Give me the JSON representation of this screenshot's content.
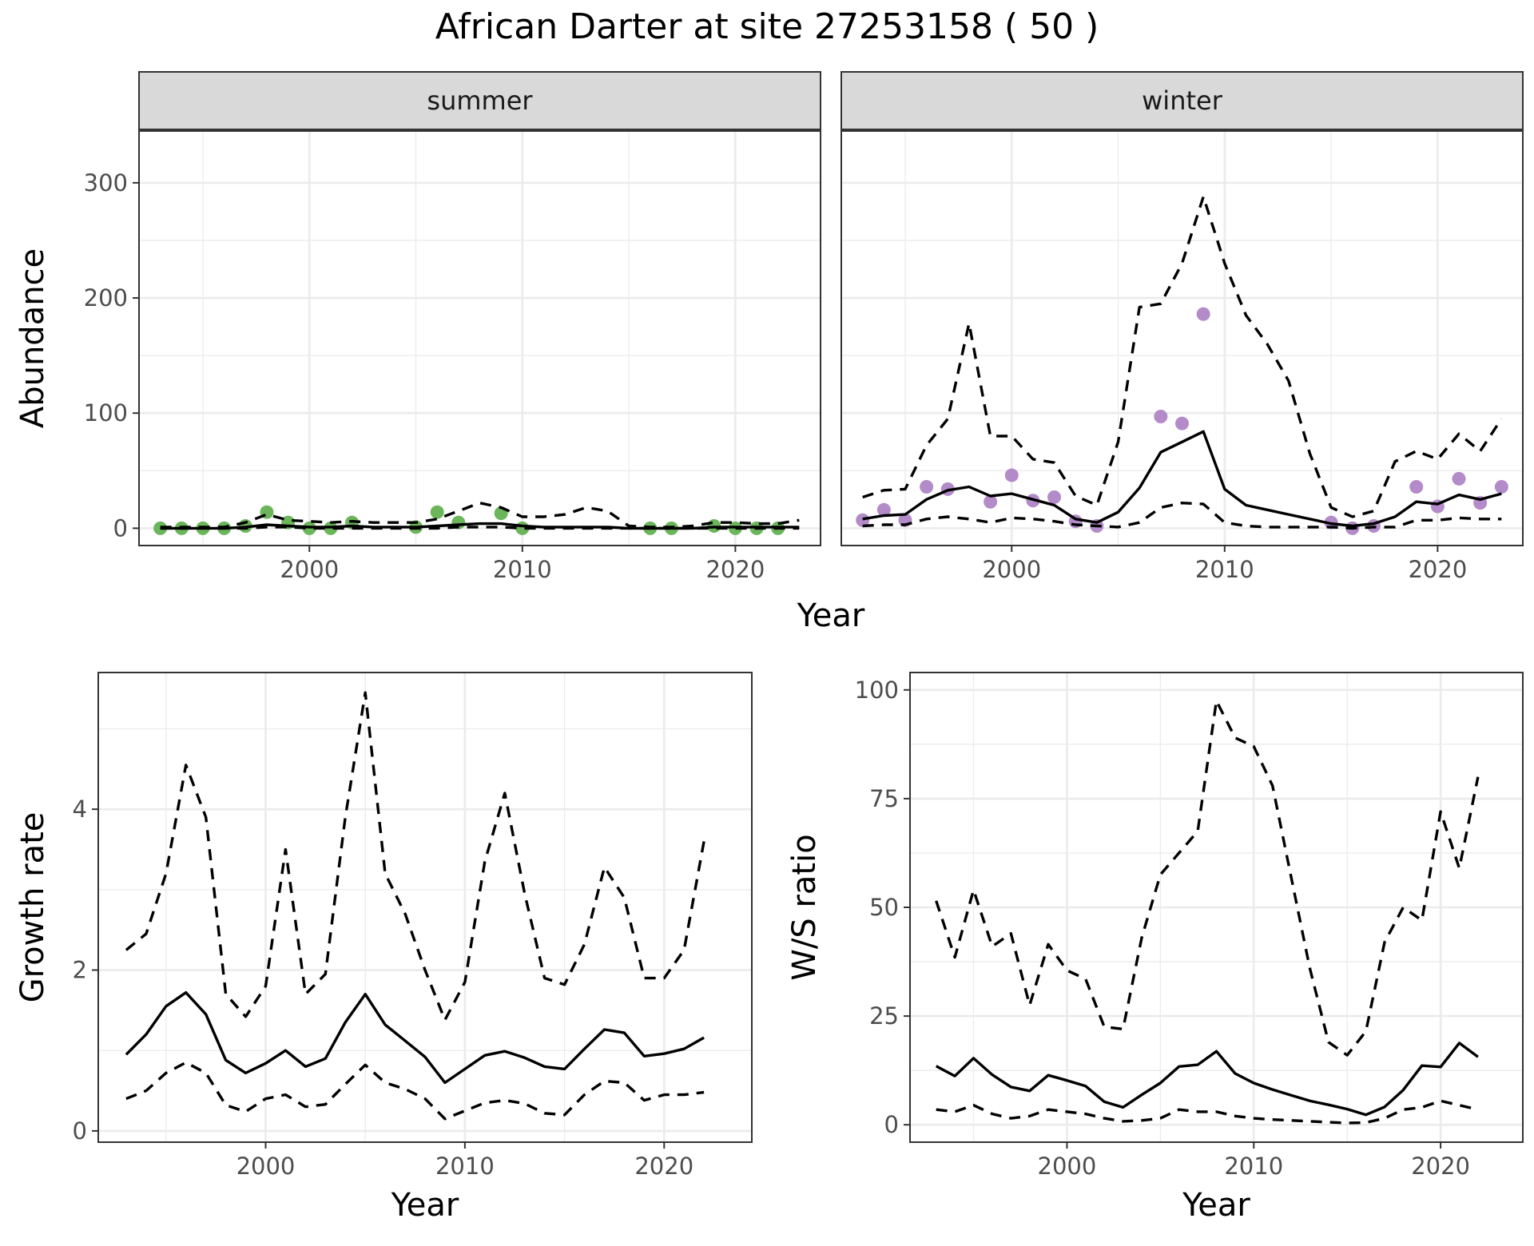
{
  "title": "African Darter at site 27253158 ( 50 )",
  "colors": {
    "summer_points": "#6bb55a",
    "winter_points": "#b38bc9",
    "lines": "#000000"
  },
  "chart_data": [
    {
      "id": "abundance",
      "type": "line",
      "facets": [
        "summer",
        "winter"
      ],
      "xlabel": "Year",
      "ylabel": "Abundance",
      "xlim": [
        1992,
        2024
      ],
      "ylim": [
        -15,
        345
      ],
      "xticks": [
        2000,
        2010,
        2020
      ],
      "yticks": [
        0,
        100,
        200,
        300
      ],
      "grid": true,
      "panels": [
        {
          "strip": "summer",
          "mean": {
            "x": [
              1993,
              1994,
              1995,
              1996,
              1997,
              1998,
              1999,
              2000,
              2001,
              2002,
              2003,
              2004,
              2005,
              2006,
              2007,
              2008,
              2009,
              2010,
              2011,
              2012,
              2013,
              2014,
              2015,
              2016,
              2017,
              2018,
              2019,
              2020,
              2021,
              2022,
              2023
            ],
            "y": [
              0,
              0,
              0,
              0,
              1,
              3,
              2,
              1,
              1,
              2,
              1,
              1,
              1,
              2,
              3,
              4,
              4,
              2,
              1,
              1,
              1,
              1,
              0,
              0,
              0,
              0,
              1,
              1,
              1,
              1,
              1
            ]
          },
          "upper": {
            "x": [
              1993,
              1994,
              1995,
              1996,
              1997,
              1998,
              1999,
              2000,
              2001,
              2002,
              2003,
              2004,
              2005,
              2006,
              2007,
              2008,
              2009,
              2010,
              2011,
              2012,
              2013,
              2014,
              2015,
              2016,
              2017,
              2018,
              2019,
              2020,
              2021,
              2022,
              2023
            ],
            "y": [
              1,
              1,
              1,
              1,
              5,
              12,
              7,
              6,
              5,
              6,
              5,
              5,
              5,
              8,
              15,
              22,
              18,
              10,
              10,
              12,
              18,
              15,
              2,
              1,
              1,
              2,
              5,
              5,
              4,
              4,
              7
            ]
          },
          "lower": {
            "x": [
              1993,
              1994,
              1995,
              1996,
              1997,
              1998,
              1999,
              2000,
              2001,
              2002,
              2003,
              2004,
              2005,
              2006,
              2007,
              2008,
              2009,
              2010,
              2011,
              2012,
              2013,
              2014,
              2015,
              2016,
              2017,
              2018,
              2019,
              2020,
              2021,
              2022,
              2023
            ],
            "y": [
              0,
              0,
              0,
              0,
              0,
              1,
              1,
              0,
              0,
              0,
              0,
              0,
              0,
              0,
              1,
              1,
              1,
              0,
              0,
              0,
              0,
              0,
              0,
              0,
              0,
              0,
              0,
              0,
              0,
              0,
              0
            ]
          },
          "points": {
            "x": [
              1993,
              1994,
              1995,
              1996,
              1997,
              1998,
              1999,
              2000,
              2001,
              2002,
              2005,
              2006,
              2007,
              2009,
              2010,
              2016,
              2017,
              2019,
              2020,
              2021,
              2022
            ],
            "y": [
              0,
              0,
              0,
              0,
              2,
              14,
              5,
              0,
              0,
              5,
              1,
              14,
              5,
              13,
              0,
              0,
              0,
              2,
              0,
              0,
              0
            ]
          }
        },
        {
          "strip": "winter",
          "mean": {
            "x": [
              1993,
              1994,
              1995,
              1996,
              1997,
              1998,
              1999,
              2000,
              2001,
              2002,
              2003,
              2004,
              2005,
              2006,
              2007,
              2008,
              2009,
              2010,
              2011,
              2012,
              2013,
              2014,
              2015,
              2016,
              2017,
              2018,
              2019,
              2020,
              2021,
              2022,
              2023
            ],
            "y": [
              8,
              11,
              12,
              25,
              33,
              36,
              28,
              30,
              25,
              20,
              8,
              5,
              14,
              35,
              66,
              75,
              84,
              34,
              20,
              16,
              12,
              8,
              4,
              2,
              4,
              10,
              23,
              21,
              29,
              25,
              30
            ]
          },
          "upper": {
            "x": [
              1993,
              1994,
              1995,
              1996,
              1997,
              1998,
              1999,
              2000,
              2001,
              2002,
              2003,
              2004,
              2005,
              2006,
              2007,
              2008,
              2009,
              2010,
              2011,
              2012,
              2013,
              2014,
              2015,
              2016,
              2017,
              2018,
              2019,
              2020,
              2021,
              2022,
              2023
            ],
            "y": [
              27,
              33,
              34,
              72,
              95,
              178,
              80,
              80,
              60,
              57,
              28,
              20,
              75,
              192,
              195,
              230,
              288,
              230,
              185,
              160,
              128,
              65,
              18,
              10,
              15,
              58,
              67,
              60,
              82,
              67,
              95
            ]
          },
          "lower": {
            "x": [
              1993,
              1994,
              1995,
              1996,
              1997,
              1998,
              1999,
              2000,
              2001,
              2002,
              2003,
              2004,
              2005,
              2006,
              2007,
              2008,
              2009,
              2010,
              2011,
              2012,
              2013,
              2014,
              2015,
              2016,
              2017,
              2018,
              2019,
              2020,
              2021,
              2022,
              2023
            ],
            "y": [
              2,
              3,
              3,
              8,
              10,
              8,
              5,
              9,
              8,
              6,
              3,
              2,
              1,
              5,
              18,
              22,
              21,
              5,
              2,
              1,
              1,
              1,
              1,
              0,
              1,
              1,
              7,
              7,
              9,
              8,
              8
            ]
          },
          "points": {
            "x": [
              1993,
              1994,
              1995,
              1996,
              1997,
              1999,
              2000,
              2001,
              2002,
              2003,
              2004,
              2007,
              2008,
              2009,
              2015,
              2016,
              2017,
              2019,
              2020,
              2021,
              2022,
              2023
            ],
            "y": [
              7,
              16,
              7,
              36,
              34,
              23,
              46,
              24,
              27,
              6,
              2,
              97,
              91,
              186,
              5,
              0,
              2,
              36,
              19,
              43,
              22,
              36
            ]
          }
        }
      ]
    },
    {
      "id": "growth",
      "type": "line",
      "xlabel": "Year",
      "ylabel": "Growth rate",
      "xlim": [
        1991.6,
        2024.4
      ],
      "ylim": [
        -0.14,
        5.7
      ],
      "xticks": [
        2000,
        2010,
        2020
      ],
      "yticks": [
        0,
        2,
        4
      ],
      "grid": true,
      "mean": {
        "x": [
          1993,
          1994,
          1995,
          1996,
          1997,
          1998,
          1999,
          2000,
          2001,
          2002,
          2003,
          2004,
          2005,
          2006,
          2007,
          2008,
          2009,
          2010,
          2011,
          2012,
          2013,
          2014,
          2015,
          2016,
          2017,
          2018,
          2019,
          2020,
          2021,
          2022
        ],
        "y": [
          0.95,
          1.2,
          1.55,
          1.72,
          1.45,
          0.88,
          0.72,
          0.84,
          1.0,
          0.8,
          0.9,
          1.35,
          1.7,
          1.32,
          1.12,
          0.92,
          0.6,
          0.77,
          0.94,
          0.99,
          0.91,
          0.8,
          0.77,
          1.02,
          1.26,
          1.22,
          0.93,
          0.96,
          1.02,
          1.16
        ]
      },
      "upper": {
        "x": [
          1993,
          1994,
          1995,
          1996,
          1997,
          1998,
          1999,
          2000,
          2001,
          2002,
          2003,
          2004,
          2005,
          2006,
          2007,
          2008,
          2009,
          2010,
          2011,
          2012,
          2013,
          2014,
          2015,
          2016,
          2017,
          2018,
          2019,
          2020,
          2021,
          2022
        ],
        "y": [
          2.25,
          2.45,
          3.2,
          4.55,
          3.9,
          1.7,
          1.42,
          1.8,
          3.5,
          1.7,
          1.95,
          3.9,
          5.45,
          3.2,
          2.7,
          2.0,
          1.38,
          1.85,
          3.35,
          4.2,
          2.95,
          1.9,
          1.82,
          2.32,
          3.28,
          2.9,
          1.9,
          1.9,
          2.25,
          3.6
        ]
      },
      "lower": {
        "x": [
          1993,
          1994,
          1995,
          1996,
          1997,
          1998,
          1999,
          2000,
          2001,
          2002,
          2003,
          2004,
          2005,
          2006,
          2007,
          2008,
          2009,
          2010,
          2011,
          2012,
          2013,
          2014,
          2015,
          2016,
          2017,
          2018,
          2019,
          2020,
          2021,
          2022
        ],
        "y": [
          0.4,
          0.5,
          0.72,
          0.85,
          0.72,
          0.32,
          0.24,
          0.4,
          0.45,
          0.3,
          0.33,
          0.58,
          0.82,
          0.6,
          0.52,
          0.4,
          0.15,
          0.25,
          0.35,
          0.38,
          0.34,
          0.22,
          0.2,
          0.45,
          0.62,
          0.6,
          0.38,
          0.45,
          0.45,
          0.48
        ]
      }
    },
    {
      "id": "ws_ratio",
      "type": "line",
      "xlabel": "Year",
      "ylabel": "W/S ratio",
      "xlim": [
        1991.6,
        2024.4
      ],
      "ylim": [
        -4,
        104
      ],
      "xticks": [
        2000,
        2010,
        2020
      ],
      "yticks": [
        0,
        25,
        50,
        75,
        100
      ],
      "grid": true,
      "mean": {
        "x": [
          1993,
          1994,
          1995,
          1996,
          1997,
          1998,
          1999,
          2000,
          2001,
          2002,
          2003,
          2004,
          2005,
          2006,
          2007,
          2008,
          2009,
          2010,
          2011,
          2012,
          2013,
          2014,
          2015,
          2016,
          2017,
          2018,
          2019,
          2020,
          2021,
          2022
        ],
        "y": [
          13.5,
          11.2,
          15.3,
          11.5,
          8.7,
          7.8,
          11.4,
          10.2,
          8.9,
          5.3,
          4.0,
          6.9,
          9.6,
          13.4,
          13.8,
          16.9,
          11.8,
          9.6,
          8.1,
          6.8,
          5.5,
          4.6,
          3.6,
          2.3,
          4.1,
          8.0,
          13.6,
          13.3,
          18.8,
          15.6
        ]
      },
      "upper": {
        "x": [
          1993,
          1994,
          1995,
          1996,
          1997,
          1998,
          1999,
          2000,
          2001,
          2002,
          2003,
          2004,
          2005,
          2006,
          2007,
          2008,
          2009,
          2010,
          2011,
          2012,
          2013,
          2014,
          2015,
          2016,
          2017,
          2018,
          2019,
          2020,
          2021,
          2022
        ],
        "y": [
          51.5,
          38.5,
          54.0,
          41.0,
          44.0,
          27.5,
          41.5,
          35.5,
          33.5,
          22.5,
          22.0,
          43.0,
          57.5,
          62.5,
          67.5,
          97.5,
          89.0,
          87.0,
          78.0,
          57.0,
          36.0,
          19.0,
          16.0,
          21.5,
          42.0,
          50.0,
          47.0,
          72.0,
          59.0,
          80.0
        ]
      },
      "lower": {
        "x": [
          1993,
          1994,
          1995,
          1996,
          1997,
          1998,
          1999,
          2000,
          2001,
          2002,
          2003,
          2004,
          2005,
          2006,
          2007,
          2008,
          2009,
          2010,
          2011,
          2012,
          2013,
          2014,
          2015,
          2016,
          2017,
          2018,
          2019,
          2020,
          2021,
          2022
        ],
        "y": [
          3.5,
          3.0,
          4.5,
          2.5,
          1.5,
          2.0,
          3.5,
          3.0,
          2.5,
          1.5,
          0.8,
          1.0,
          1.5,
          3.5,
          3.0,
          3.0,
          2.0,
          1.5,
          1.2,
          1.0,
          0.8,
          0.6,
          0.4,
          0.5,
          1.5,
          3.5,
          4.0,
          5.5,
          4.5,
          3.5
        ]
      }
    }
  ]
}
